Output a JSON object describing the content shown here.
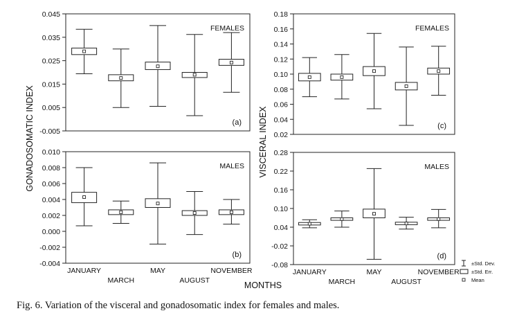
{
  "figure": {
    "caption": "Fig. 6. Variation of the visceral and gonadosomatic index for females and males.",
    "xlabel": "MONTHS",
    "ylabel_left": "GONADOSOMATIC INDEX",
    "ylabel_right": "VISCERAL INDEX",
    "categories_upper": [
      "JANUARY",
      "MAY",
      "NOVEMBER"
    ],
    "categories_lower": [
      "MARCH",
      "AUGUST"
    ]
  },
  "legend": {
    "items": [
      {
        "symbol": "whisker",
        "label": "±Std. Dev."
      },
      {
        "symbol": "box",
        "label": "±Std. Err."
      },
      {
        "symbol": "square",
        "label": "Mean"
      }
    ]
  },
  "chart_data": [
    {
      "type": "box",
      "panel": "a",
      "panel_label": "(a)",
      "group_label": "FEMALES",
      "categories": [
        "JANUARY",
        "MARCH",
        "MAY",
        "AUGUST",
        "NOVEMBER"
      ],
      "ylim": [
        -0.005,
        0.045
      ],
      "yticks": [
        "-0.005",
        "0.005",
        "0.015",
        "0.025",
        "0.035",
        "0.045"
      ],
      "ytick_values": [
        -0.005,
        0.005,
        0.015,
        0.025,
        0.035,
        0.045
      ],
      "series": [
        {
          "mean": 0.029,
          "se_low": 0.0276,
          "se_high": 0.0304,
          "sd_low": 0.0194,
          "sd_high": 0.0384
        },
        {
          "mean": 0.0176,
          "se_low": 0.0164,
          "se_high": 0.019,
          "sd_low": 0.005,
          "sd_high": 0.03
        },
        {
          "mean": 0.0226,
          "se_low": 0.0212,
          "se_high": 0.0244,
          "sd_low": 0.0055,
          "sd_high": 0.04
        },
        {
          "mean": 0.019,
          "se_low": 0.0178,
          "se_high": 0.02,
          "sd_low": 0.0015,
          "sd_high": 0.0362
        },
        {
          "mean": 0.0242,
          "se_low": 0.023,
          "se_high": 0.0256,
          "sd_low": 0.0115,
          "sd_high": 0.037
        }
      ]
    },
    {
      "type": "box",
      "panel": "b",
      "panel_label": "(b)",
      "group_label": "MALES",
      "categories": [
        "JANUARY",
        "MARCH",
        "MAY",
        "AUGUST",
        "NOVEMBER"
      ],
      "ylim": [
        -0.004,
        0.01
      ],
      "yticks": [
        "-0.004",
        "-0.002",
        "0.000",
        "0.002",
        "0.004",
        "0.006",
        "0.008",
        "0.010"
      ],
      "ytick_values": [
        -0.004,
        -0.002,
        0.0,
        0.002,
        0.004,
        0.006,
        0.008,
        0.01
      ],
      "series": [
        {
          "mean": 0.0043,
          "se_low": 0.0036,
          "se_high": 0.0049,
          "sd_low": 0.0007,
          "sd_high": 0.008
        },
        {
          "mean": 0.0024,
          "se_low": 0.0021,
          "se_high": 0.0027,
          "sd_low": 0.001,
          "sd_high": 0.0038
        },
        {
          "mean": 0.0035,
          "se_low": 0.003,
          "se_high": 0.0041,
          "sd_low": -0.0016,
          "sd_high": 0.0086
        },
        {
          "mean": 0.0023,
          "se_low": 0.002,
          "se_high": 0.0026,
          "sd_low": -0.0004,
          "sd_high": 0.005
        },
        {
          "mean": 0.0024,
          "se_low": 0.0021,
          "se_high": 0.0027,
          "sd_low": 0.0009,
          "sd_high": 0.004
        }
      ]
    },
    {
      "type": "box",
      "panel": "c",
      "panel_label": "(c)",
      "group_label": "FEMALES",
      "categories": [
        "JANUARY",
        "MARCH",
        "MAY",
        "AUGUST",
        "NOVEMBER"
      ],
      "ylim": [
        0.02,
        0.18
      ],
      "yticks": [
        "0.02",
        "0.04",
        "0.06",
        "0.08",
        "0.10",
        "0.12",
        "0.14",
        "0.16",
        "0.18"
      ],
      "ytick_values": [
        0.02,
        0.04,
        0.06,
        0.08,
        0.1,
        0.12,
        0.14,
        0.16,
        0.18
      ],
      "series": [
        {
          "mean": 0.096,
          "se_low": 0.091,
          "se_high": 0.101,
          "sd_low": 0.07,
          "sd_high": 0.122
        },
        {
          "mean": 0.096,
          "se_low": 0.092,
          "se_high": 0.1,
          "sd_low": 0.067,
          "sd_high": 0.126
        },
        {
          "mean": 0.104,
          "se_low": 0.098,
          "se_high": 0.11,
          "sd_low": 0.054,
          "sd_high": 0.154
        },
        {
          "mean": 0.084,
          "se_low": 0.079,
          "se_high": 0.089,
          "sd_low": 0.032,
          "sd_high": 0.136
        },
        {
          "mean": 0.104,
          "se_low": 0.1,
          "se_high": 0.108,
          "sd_low": 0.072,
          "sd_high": 0.137
        }
      ]
    },
    {
      "type": "box",
      "panel": "d",
      "panel_label": "(d)",
      "group_label": "MALES",
      "categories": [
        "JANUARY",
        "MARCH",
        "MAY",
        "AUGUST",
        "NOVEMBER"
      ],
      "ylim": [
        -0.08,
        0.28
      ],
      "yticks": [
        "-0.08",
        "-0.02",
        "0.04",
        "0.10",
        "0.16",
        "0.22",
        "0.28"
      ],
      "ytick_values": [
        -0.08,
        -0.02,
        0.04,
        0.1,
        0.16,
        0.22,
        0.28
      ],
      "series": [
        {
          "mean": 0.051,
          "se_low": 0.047,
          "se_high": 0.055,
          "sd_low": 0.038,
          "sd_high": 0.064
        },
        {
          "mean": 0.066,
          "se_low": 0.062,
          "se_high": 0.07,
          "sd_low": 0.04,
          "sd_high": 0.092
        },
        {
          "mean": 0.083,
          "se_low": 0.07,
          "se_high": 0.098,
          "sd_low": -0.063,
          "sd_high": 0.228
        },
        {
          "mean": 0.052,
          "se_low": 0.048,
          "se_high": 0.056,
          "sd_low": 0.034,
          "sd_high": 0.072
        },
        {
          "mean": 0.066,
          "se_low": 0.062,
          "se_high": 0.07,
          "sd_low": 0.038,
          "sd_high": 0.097
        }
      ]
    }
  ]
}
